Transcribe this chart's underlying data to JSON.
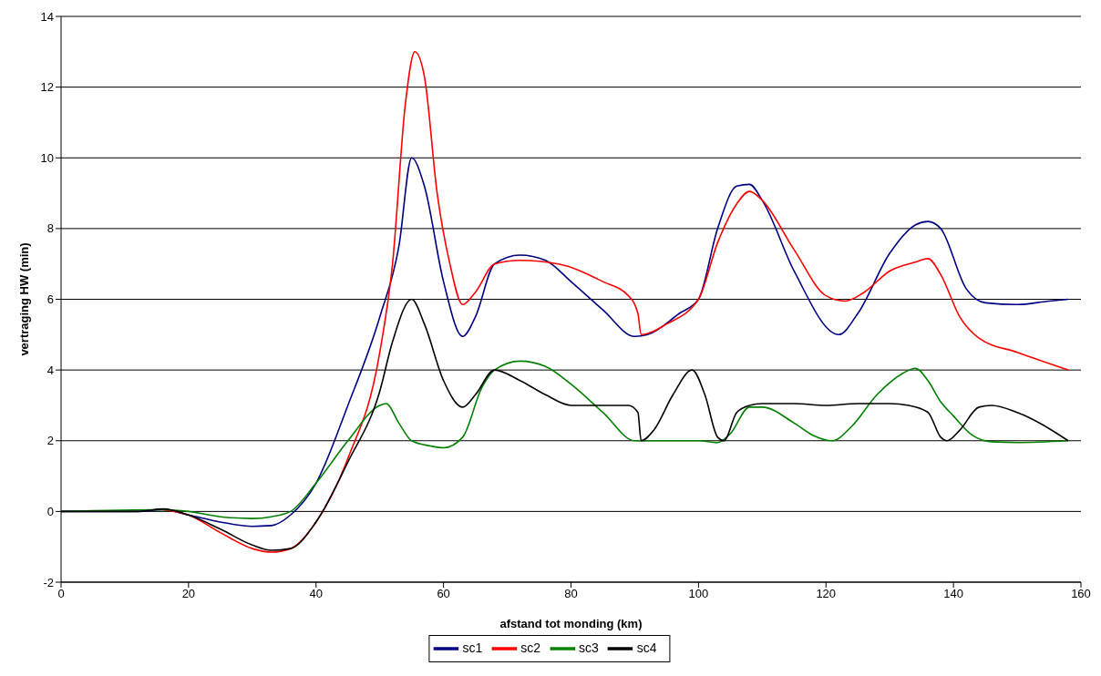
{
  "chart_data": {
    "type": "line",
    "xlabel": "afstand tot monding (km)",
    "ylabel": "vertraging HW (min)",
    "xlim": [
      0,
      160
    ],
    "ylim": [
      -2,
      14
    ],
    "xticks": [
      0,
      20,
      40,
      60,
      80,
      100,
      120,
      140,
      160
    ],
    "yticks": [
      -2,
      0,
      2,
      4,
      6,
      8,
      10,
      12,
      14
    ],
    "grid": "y",
    "legend": "bottom",
    "series": [
      {
        "name": "sc1",
        "color": "#000080",
        "x": [
          0,
          12,
          16,
          20,
          25,
          30,
          33,
          36,
          40,
          45,
          50,
          53,
          55,
          57,
          60,
          63,
          65,
          68,
          72,
          76,
          80,
          85,
          90,
          92,
          97,
          100,
          103,
          106,
          108,
          110,
          115,
          122,
          125,
          130,
          134,
          136,
          138,
          142,
          145,
          150,
          155,
          158
        ],
        "values": [
          0,
          0,
          0.05,
          -0.1,
          -0.3,
          -0.42,
          -0.4,
          -0.1,
          0.8,
          3,
          5.5,
          7.5,
          10,
          9.2,
          6.5,
          4.95,
          5.5,
          7,
          7.25,
          7.1,
          6.5,
          5.7,
          4.95,
          5,
          5.6,
          6,
          8,
          9.2,
          9.25,
          8.8,
          6.8,
          5,
          5.6,
          7.3,
          8.1,
          8.2,
          8,
          6.3,
          5.9,
          5.85,
          5.95,
          6
        ]
      },
      {
        "name": "sc2",
        "color": "#ff0000",
        "x": [
          16,
          20,
          25,
          30,
          33,
          36,
          40,
          45,
          50,
          52,
          54,
          55.5,
          57,
          59,
          61,
          63,
          65,
          68,
          72,
          78,
          85,
          89,
          90.5,
          91,
          95,
          100,
          103,
          106,
          108,
          110,
          115,
          120,
          123,
          126,
          130,
          134,
          136,
          138,
          141,
          144,
          150,
          158
        ],
        "values": [
          0.05,
          -0.1,
          -0.6,
          -1.05,
          -1.15,
          -1.05,
          -0.3,
          1.5,
          4.5,
          7,
          11.5,
          13,
          12.3,
          9,
          7,
          5.85,
          6.2,
          7,
          7.1,
          7,
          6.5,
          6.1,
          5.6,
          5,
          5.3,
          6,
          7.6,
          8.7,
          9.05,
          8.8,
          7.4,
          6.1,
          5.95,
          6.2,
          6.8,
          7.05,
          7.15,
          6.7,
          5.5,
          4.9,
          4.5,
          4
        ]
      },
      {
        "name": "sc3",
        "color": "#008000",
        "x": [
          0,
          16,
          20,
          25,
          30,
          33,
          36,
          40,
          45,
          50,
          51,
          53,
          55,
          58,
          60,
          63,
          66,
          68,
          72,
          76,
          80,
          85,
          90,
          95,
          100,
          103,
          105,
          108,
          110,
          115,
          118,
          121,
          124,
          128,
          132,
          134,
          136,
          138,
          140,
          143,
          146,
          150,
          158
        ],
        "values": [
          0,
          0.05,
          0,
          -0.15,
          -0.2,
          -0.15,
          0,
          0.8,
          2,
          3,
          3.05,
          2.5,
          2,
          1.85,
          1.8,
          2.1,
          3.5,
          4,
          4.25,
          4.1,
          3.6,
          2.8,
          2,
          2,
          2,
          1.95,
          2.2,
          2.95,
          2.95,
          2.5,
          2.15,
          2,
          2.4,
          3.3,
          3.9,
          4.05,
          3.7,
          3.1,
          2.7,
          2.15,
          1.97,
          1.95,
          2
        ]
      },
      {
        "name": "sc4",
        "color": "#000000",
        "x": [
          0,
          12,
          16,
          20,
          25,
          30,
          33,
          36,
          40,
          45,
          50,
          52,
          55,
          57,
          60,
          63,
          65,
          68,
          72,
          76,
          80,
          85,
          89,
          90.5,
          91,
          93,
          96,
          99,
          101,
          103,
          104,
          106,
          108,
          110,
          115,
          120,
          125,
          130,
          133,
          136,
          138,
          139,
          141,
          144,
          146,
          150,
          158
        ],
        "values": [
          0,
          0,
          0.07,
          -0.1,
          -0.5,
          -0.95,
          -1.1,
          -1.05,
          -0.3,
          1.4,
          3.4,
          4.8,
          6,
          5.3,
          3.7,
          2.95,
          3.3,
          4,
          3.7,
          3.3,
          3,
          3,
          3,
          2.8,
          2,
          2.3,
          3.3,
          4,
          3.3,
          2.1,
          2,
          2.8,
          3,
          3.05,
          3.05,
          3,
          3.05,
          3.05,
          3,
          2.8,
          2.1,
          2,
          2.3,
          2.95,
          3,
          2.8,
          2
        ]
      }
    ]
  }
}
